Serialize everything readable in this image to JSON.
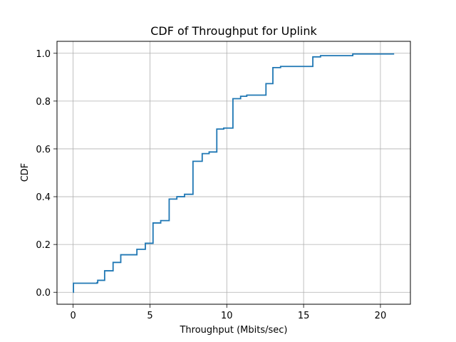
{
  "chart_data": {
    "type": "line",
    "title": "CDF of Throughput for Uplink",
    "xlabel": "Throughput (Mbits/sec)",
    "ylabel": "CDF",
    "xlim": [
      -1.05,
      21.95
    ],
    "ylim": [
      -0.05,
      1.05
    ],
    "xticks": [
      0,
      5,
      10,
      15,
      20
    ],
    "xtick_labels": [
      "0",
      "5",
      "10",
      "15",
      "20"
    ],
    "yticks": [
      0.0,
      0.2,
      0.4,
      0.6,
      0.8,
      1.0
    ],
    "ytick_labels": [
      "0.0",
      "0.2",
      "0.4",
      "0.6",
      "0.8",
      "1.0"
    ],
    "grid": true,
    "line_color": "#1f77b4",
    "series": [
      {
        "name": "Uplink",
        "drawstyle": "steps-post",
        "x": [
          0.0,
          0.02,
          1.55,
          1.6,
          2.05,
          2.6,
          3.1,
          4.15,
          4.7,
          5.2,
          5.7,
          6.25,
          6.75,
          7.25,
          7.8,
          8.4,
          8.85,
          9.35,
          9.8,
          10.4,
          10.9,
          11.3,
          12.55,
          13.0,
          13.5,
          15.6,
          16.1,
          18.2,
          20.85
        ],
        "y": [
          0.0,
          0.038,
          0.04,
          0.05,
          0.09,
          0.125,
          0.157,
          0.18,
          0.205,
          0.29,
          0.3,
          0.39,
          0.4,
          0.41,
          0.548,
          0.58,
          0.587,
          0.683,
          0.687,
          0.81,
          0.82,
          0.825,
          0.873,
          0.94,
          0.945,
          0.985,
          0.99,
          0.997,
          1.0
        ]
      }
    ]
  }
}
